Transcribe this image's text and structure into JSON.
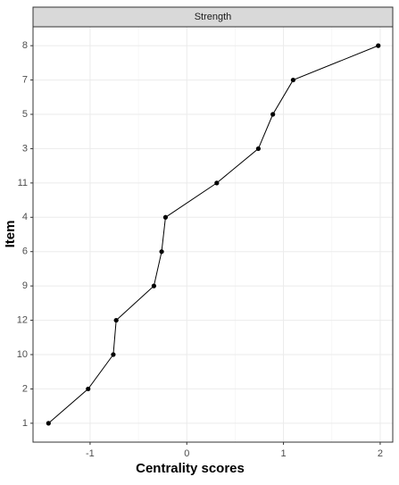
{
  "chart_data": {
    "type": "line",
    "strip": "Strength",
    "x_label": "Centrality scores",
    "y_label": "Item",
    "categories": [
      "1",
      "2",
      "10",
      "12",
      "9",
      "6",
      "4",
      "11",
      "3",
      "5",
      "7",
      "8"
    ],
    "values": [
      -1.43,
      -1.02,
      -0.76,
      -0.73,
      -0.34,
      -0.26,
      -0.22,
      0.31,
      0.74,
      0.89,
      1.1,
      1.98
    ],
    "xlim": [
      -1.59,
      2.13
    ],
    "xticks": [
      -1,
      0,
      1,
      2
    ],
    "color": "#000000",
    "grid": true
  }
}
